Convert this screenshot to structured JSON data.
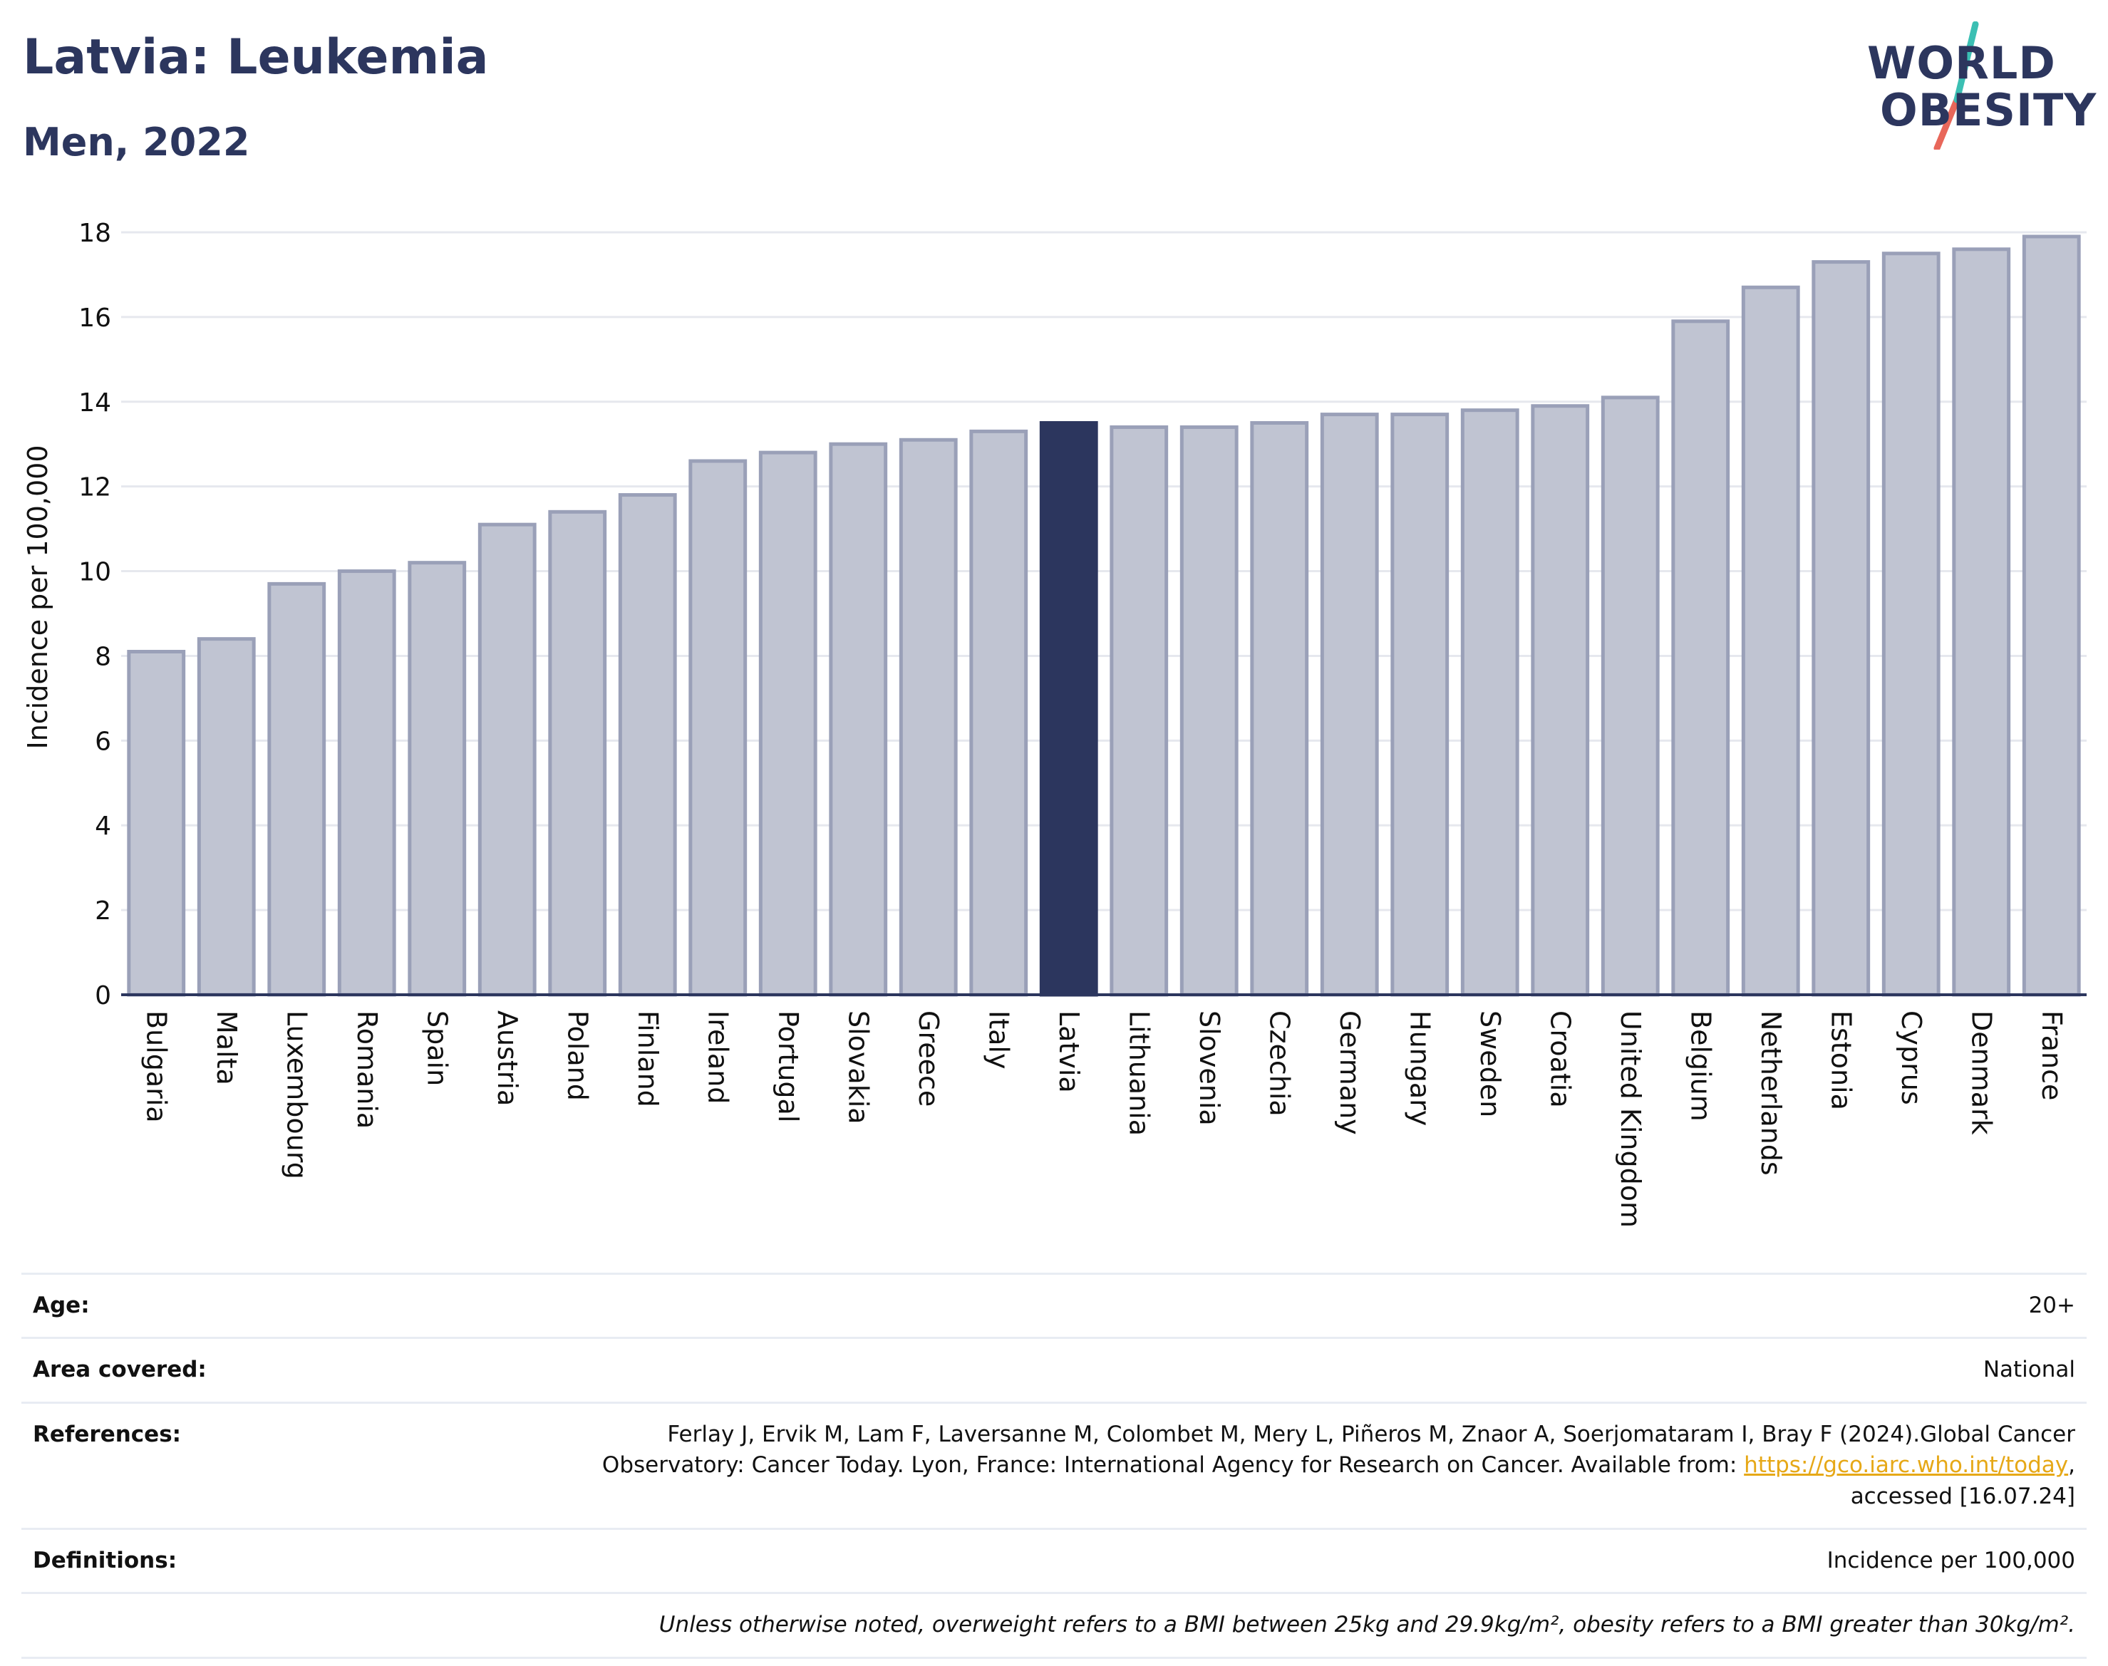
{
  "header": {
    "title": "Latvia: Leukemia",
    "subtitle": "Men, 2022"
  },
  "logo": {
    "line1": "WORLD",
    "line2": "OBESITY",
    "colors": {
      "text": "#2c365e",
      "slash_top": "#3bbfb3",
      "slash_bottom": "#e8675a"
    }
  },
  "chart_data": {
    "type": "bar",
    "ylabel": "Incidence per 100,000",
    "xlabel": "",
    "ylim": [
      0,
      18
    ],
    "yticks": [
      0,
      2,
      4,
      6,
      8,
      10,
      12,
      14,
      16,
      18
    ],
    "grid": true,
    "highlight": "Latvia",
    "colors": {
      "bar": "#c0c4d2",
      "bar_outline": "#9aa0b8",
      "highlight": "#2c365e",
      "grid": "#e6e8ee",
      "axis": "#2c365e"
    },
    "categories": [
      "Bulgaria",
      "Malta",
      "Luxembourg",
      "Romania",
      "Spain",
      "Austria",
      "Poland",
      "Finland",
      "Ireland",
      "Portugal",
      "Slovakia",
      "Greece",
      "Italy",
      "Latvia",
      "Lithuania",
      "Slovenia",
      "Czechia",
      "Germany",
      "Hungary",
      "Sweden",
      "Croatia",
      "United Kingdom",
      "Belgium",
      "Netherlands",
      "Estonia",
      "Cyprus",
      "Denmark",
      "France"
    ],
    "values": [
      8.1,
      8.4,
      9.7,
      10.0,
      10.2,
      11.1,
      11.4,
      11.8,
      12.6,
      12.8,
      13.0,
      13.1,
      13.3,
      13.5,
      13.4,
      13.4,
      13.5,
      13.7,
      13.7,
      13.8,
      13.9,
      14.1,
      15.9,
      16.7,
      17.3,
      17.5,
      17.6,
      17.9
    ]
  },
  "info": {
    "age_label": "Age:",
    "age_value": "20+",
    "area_label": "Area covered:",
    "area_value": "National",
    "references_label": "References:",
    "references_line1": "Ferlay J, Ervik M, Lam F, Laversanne M, Colombet M, Mery L, Piñeros M, Znaor A, Soerjomataram I, Bray F (2024).Global Cancer",
    "references_line2_pre": "Observatory: Cancer Today. Lyon, France: International Agency for Research on Cancer. Available from: ",
    "references_link": "https://gco.iarc.who.int/today",
    "references_line2_post": ",",
    "references_line3": "accessed [16.07.24]",
    "definitions_label": "Definitions:",
    "definitions_value": "Incidence per 100,000",
    "note": "Unless otherwise noted, overweight refers to a BMI between 25kg and 29.9kg/m², obesity refers to a BMI greater than 30kg/m²."
  }
}
